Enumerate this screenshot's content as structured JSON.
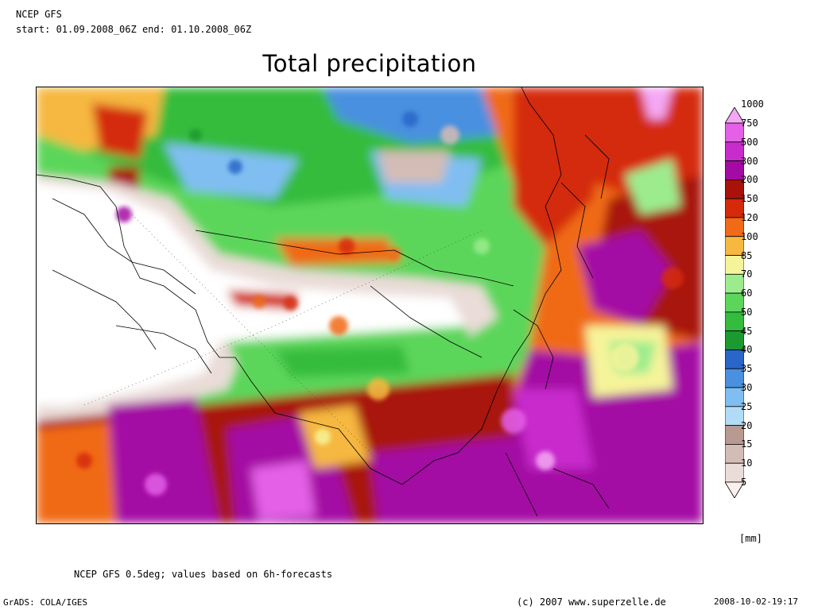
{
  "header": {
    "model": "NCEP GFS",
    "period": "start: 01.09.2008_06Z  end: 01.10.2008_06Z"
  },
  "title": "Total precipitation",
  "legend": {
    "unit": "[mm]",
    "levels": [
      "5",
      "10",
      "15",
      "20",
      "25",
      "30",
      "35",
      "40",
      "45",
      "50",
      "60",
      "70",
      "85",
      "100",
      "120",
      "150",
      "200",
      "300",
      "500",
      "750",
      "1000"
    ],
    "colors": [
      "#fdf0ec",
      "#eadcd8",
      "#d4bcb6",
      "#b89a92",
      "#b0dcf6",
      "#80bef2",
      "#4a90e0",
      "#2a66c8",
      "#1c9a30",
      "#34bc3e",
      "#5cd65a",
      "#9cec8e",
      "#f6f49a",
      "#f6b840",
      "#f06a18",
      "#d42a0a",
      "#a8120a",
      "#a40aa4",
      "#c82ccc",
      "#e460e6",
      "#f4a8f4"
    ]
  },
  "footer": {
    "note": "NCEP GFS 0.5deg; values based on 6h-forecasts",
    "grads": "GrADS: COLA/IGES",
    "copyright": "(c) 2007 www.superzelle.de",
    "timestamp": "2008-10-02-19:17"
  }
}
